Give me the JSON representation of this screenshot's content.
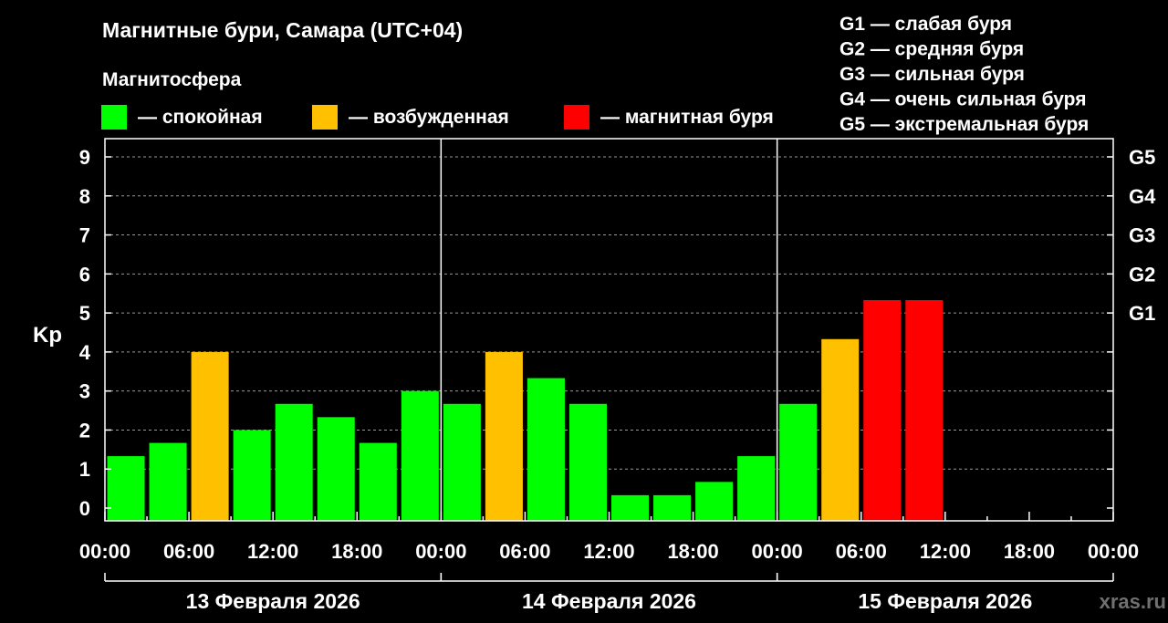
{
  "chart_data": {
    "type": "bar",
    "title": "Магнитные бури, Самара (UTC+04)",
    "legend_title": "Магнитосфера",
    "legend": [
      {
        "label": "— спокойная",
        "color": "#00ff00",
        "key": "quiet"
      },
      {
        "label": "— возбужденная",
        "color": "#ffc000",
        "key": "excited"
      },
      {
        "label": "— магнитная буря",
        "color": "#ff0000",
        "key": "storm"
      }
    ],
    "storm_scale": [
      "G1 — слабая буря",
      "G2 — средняя буря",
      "G3 — сильная буря",
      "G4 — очень сильная буря",
      "G5 — экстремальная буря"
    ],
    "ylabel": "Kp",
    "ylim": [
      0,
      9
    ],
    "yticks": [
      "0",
      "1",
      "2",
      "3",
      "4",
      "5",
      "6",
      "7",
      "8",
      "9"
    ],
    "right_ticks": [
      {
        "label": "G1",
        "value": 5
      },
      {
        "label": "G2",
        "value": 6
      },
      {
        "label": "G3",
        "value": 7
      },
      {
        "label": "G4",
        "value": 8
      },
      {
        "label": "G5",
        "value": 9
      }
    ],
    "xticks": [
      "00:00",
      "06:00",
      "12:00",
      "18:00",
      "00:00",
      "06:00",
      "12:00",
      "18:00",
      "00:00",
      "06:00",
      "12:00",
      "18:00",
      "00:00"
    ],
    "days": [
      "13 Февраля 2026",
      "14 Февраля 2026",
      "15 Февраля 2026"
    ],
    "interval_hours": 3,
    "values": [
      1.33,
      1.67,
      4.0,
      2.0,
      2.67,
      2.33,
      1.67,
      3.0,
      2.67,
      4.0,
      3.33,
      2.67,
      0.33,
      0.33,
      0.67,
      1.33,
      2.67,
      4.33,
      5.33,
      5.33
    ],
    "levels": [
      "quiet",
      "quiet",
      "excited",
      "quiet",
      "quiet",
      "quiet",
      "quiet",
      "quiet",
      "quiet",
      "excited",
      "quiet",
      "quiet",
      "quiet",
      "quiet",
      "quiet",
      "quiet",
      "quiet",
      "excited",
      "storm",
      "storm"
    ],
    "colors": {
      "quiet": "#00ff00",
      "excited": "#ffc000",
      "storm": "#ff0000"
    },
    "grid": true
  },
  "watermark": "xras.ru"
}
